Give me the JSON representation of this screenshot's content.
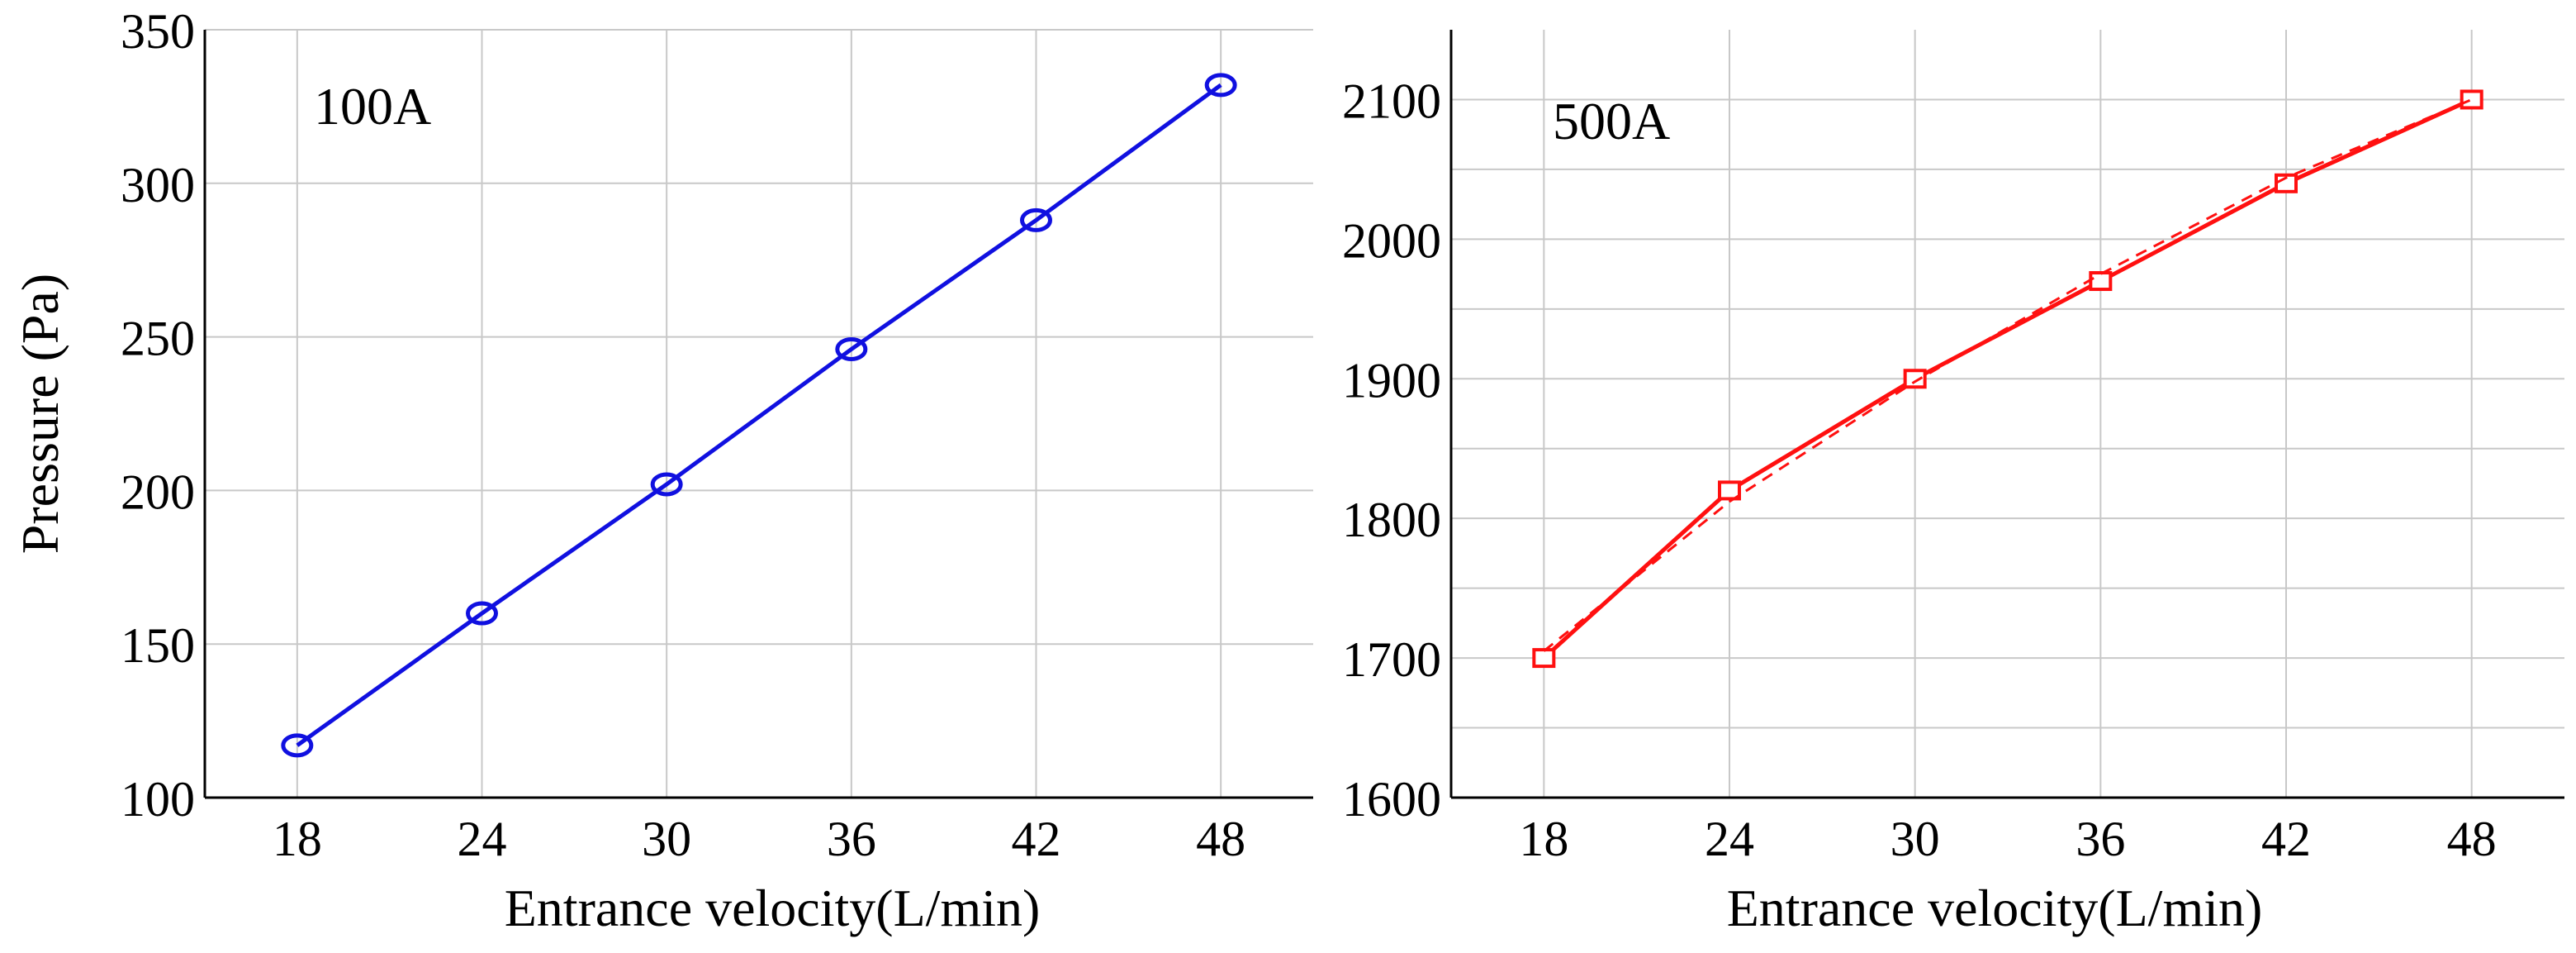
{
  "figure": {
    "ylabel": "Pressure (Pa)",
    "panels": [
      {
        "tag": "100A",
        "xlabel": "Entrance velocity(L/min)"
      },
      {
        "tag": "500A",
        "xlabel": "Entrance velocity(L/min)"
      }
    ]
  },
  "chart_data": [
    {
      "type": "line",
      "title": "",
      "annotation": "100A",
      "xlabel": "Entrance velocity(L/min)",
      "ylabel": "Pressure (Pa)",
      "x": [
        18,
        24,
        30,
        36,
        42,
        48
      ],
      "xticks": [
        18,
        24,
        30,
        36,
        42,
        48
      ],
      "yticks": [
        100,
        150,
        200,
        250,
        300,
        350
      ],
      "xlim": [
        15,
        51
      ],
      "ylim": [
        100,
        350
      ],
      "grid": true,
      "series": [
        {
          "values": [
            117,
            160,
            202,
            246,
            288,
            332
          ],
          "color": "#1010e0",
          "marker": "circle",
          "linestyle": "solid"
        }
      ]
    },
    {
      "type": "line",
      "title": "",
      "annotation": "500A",
      "xlabel": "Entrance velocity(L/min)",
      "ylabel": "",
      "x": [
        18,
        24,
        30,
        36,
        42,
        48
      ],
      "xticks": [
        18,
        24,
        30,
        36,
        42,
        48
      ],
      "yticks": [
        1600,
        1700,
        1800,
        1900,
        2000,
        2100
      ],
      "xlim": [
        15,
        51
      ],
      "ylim": [
        1600,
        2150
      ],
      "grid": true,
      "series": [
        {
          "values": [
            1700,
            1820,
            1900,
            1970,
            2040,
            2100
          ],
          "color": "#ff1010",
          "marker": "square",
          "linestyle": "solid"
        },
        {
          "values": [
            1705,
            1812,
            1898,
            1975,
            2044,
            2100
          ],
          "color": "#ff1010",
          "marker": "none",
          "linestyle": "dashed"
        }
      ]
    }
  ]
}
